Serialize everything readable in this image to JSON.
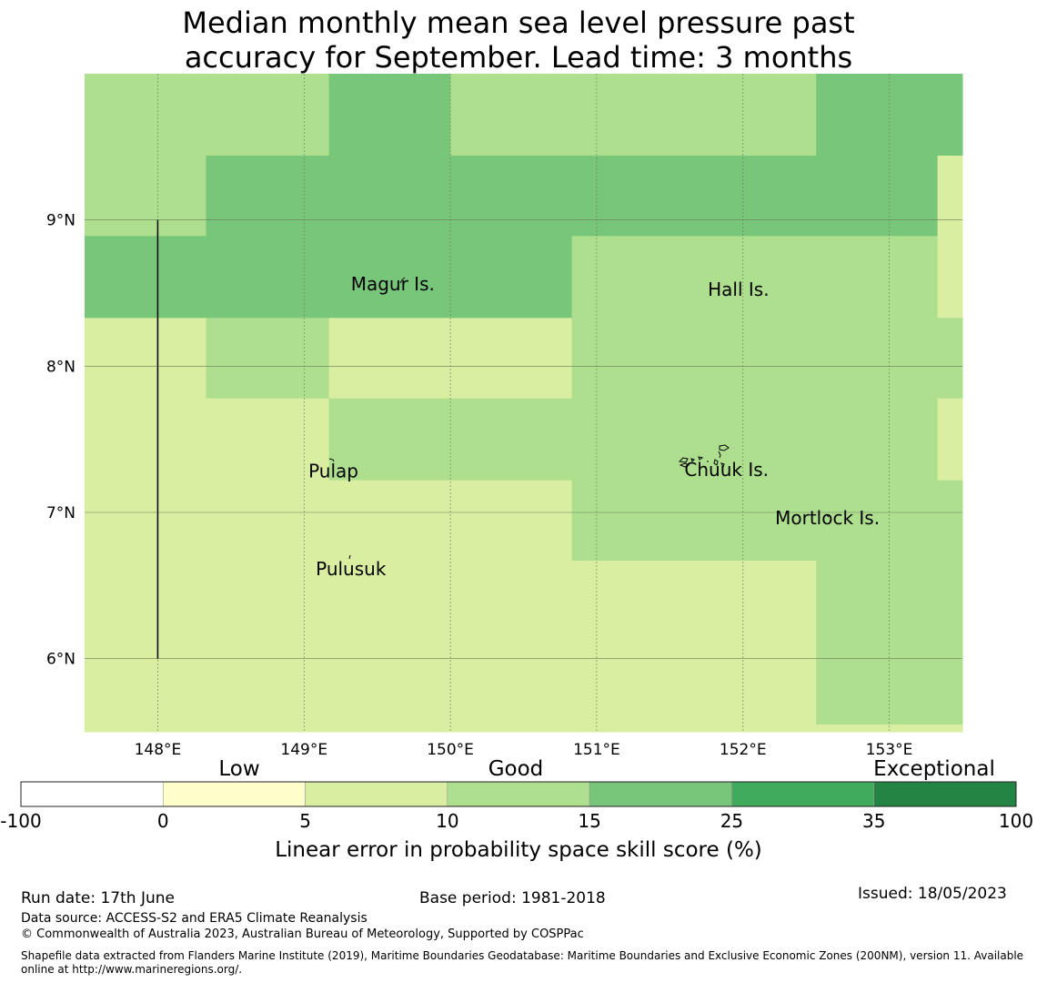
{
  "title": {
    "line1": "Median monthly mean sea level pressure past",
    "line2": "accuracy for September. Lead time: 3 months"
  },
  "map": {
    "lon_range": [
      147.5,
      153.5
    ],
    "lat_range": [
      5.5,
      10.0
    ],
    "lon_ticks": [
      148,
      149,
      150,
      151,
      152,
      153
    ],
    "lon_tick_labels": [
      "148°E",
      "149°E",
      "150°E",
      "151°E",
      "152°E",
      "153°E"
    ],
    "lat_ticks": [
      6,
      7,
      8,
      9
    ],
    "lat_tick_labels": [
      "6°N",
      "7°N",
      "8°N",
      "9°N"
    ],
    "grid": true,
    "boundary_line": {
      "lon": 148.0,
      "lat_from": 6.0,
      "lat_to": 9.0
    },
    "cells": [
      {
        "lon": [
          147.5,
          148.33
        ],
        "lat": [
          9.44,
          10.0
        ],
        "cls": "c10"
      },
      {
        "lon": [
          148.33,
          149.17
        ],
        "lat": [
          9.44,
          10.0
        ],
        "cls": "c10"
      },
      {
        "lon": [
          149.17,
          150.0
        ],
        "lat": [
          9.44,
          10.0
        ],
        "cls": "c15"
      },
      {
        "lon": [
          150.0,
          152.5
        ],
        "lat": [
          9.44,
          10.0
        ],
        "cls": "c10"
      },
      {
        "lon": [
          152.5,
          153.5
        ],
        "lat": [
          9.44,
          10.0
        ],
        "cls": "c15"
      },
      {
        "lon": [
          147.5,
          148.33
        ],
        "lat": [
          8.89,
          9.44
        ],
        "cls": "c10"
      },
      {
        "lon": [
          148.33,
          153.33
        ],
        "lat": [
          8.89,
          9.44
        ],
        "cls": "c15"
      },
      {
        "lon": [
          153.33,
          153.5
        ],
        "lat": [
          8.89,
          9.44
        ],
        "cls": "c5"
      },
      {
        "lon": [
          147.5,
          150.83
        ],
        "lat": [
          8.33,
          8.89
        ],
        "cls": "c15"
      },
      {
        "lon": [
          150.83,
          153.33
        ],
        "lat": [
          8.33,
          8.89
        ],
        "cls": "c10"
      },
      {
        "lon": [
          153.33,
          153.5
        ],
        "lat": [
          8.33,
          8.89
        ],
        "cls": "c5"
      },
      {
        "lon": [
          147.5,
          148.33
        ],
        "lat": [
          7.78,
          8.33
        ],
        "cls": "c5"
      },
      {
        "lon": [
          148.33,
          149.17
        ],
        "lat": [
          7.78,
          8.33
        ],
        "cls": "c10"
      },
      {
        "lon": [
          149.17,
          150.83
        ],
        "lat": [
          7.78,
          8.33
        ],
        "cls": "c5"
      },
      {
        "lon": [
          150.83,
          153.5
        ],
        "lat": [
          7.78,
          8.33
        ],
        "cls": "c10"
      },
      {
        "lon": [
          147.5,
          149.17
        ],
        "lat": [
          7.22,
          7.78
        ],
        "cls": "c5"
      },
      {
        "lon": [
          149.17,
          153.33
        ],
        "lat": [
          7.22,
          7.78
        ],
        "cls": "c10"
      },
      {
        "lon": [
          153.33,
          153.5
        ],
        "lat": [
          7.22,
          7.78
        ],
        "cls": "c5"
      },
      {
        "lon": [
          147.5,
          150.83
        ],
        "lat": [
          6.67,
          7.22
        ],
        "cls": "c5"
      },
      {
        "lon": [
          150.83,
          153.5
        ],
        "lat": [
          6.67,
          7.22
        ],
        "cls": "c10"
      },
      {
        "lon": [
          147.5,
          152.5
        ],
        "lat": [
          5.5,
          6.67
        ],
        "cls": "c5"
      },
      {
        "lon": [
          152.5,
          153.5
        ],
        "lat": [
          5.55,
          6.67
        ],
        "cls": "c10"
      },
      {
        "lon": [
          152.5,
          153.5
        ],
        "lat": [
          5.5,
          5.55
        ],
        "cls": "c5"
      }
    ],
    "places": [
      {
        "name": "Magur Is.",
        "lon": 149.32,
        "lat": 8.52
      },
      {
        "name": "Hall Is.",
        "lon": 151.76,
        "lat": 8.48
      },
      {
        "name": "Pulap",
        "lon": 149.03,
        "lat": 7.24
      },
      {
        "name": "Chuuk Is.",
        "lon": 151.6,
        "lat": 7.25
      },
      {
        "name": "Mortlock Is.",
        "lon": 152.22,
        "lat": 6.92
      },
      {
        "name": "Pulusuk",
        "lon": 149.08,
        "lat": 6.57
      }
    ]
  },
  "legend": {
    "category_labels": [
      "Low",
      "Good",
      "Exceptional"
    ],
    "bins": [
      {
        "from": "-100",
        "to": "0",
        "color": "#ffffff"
      },
      {
        "from": "0",
        "to": "5",
        "color": "#ffffcc"
      },
      {
        "from": "5",
        "to": "10",
        "color": "#d9eea1"
      },
      {
        "from": "10",
        "to": "15",
        "color": "#addf8e"
      },
      {
        "from": "15",
        "to": "25",
        "color": "#78c679"
      },
      {
        "from": "25",
        "to": "35",
        "color": "#41ab5d"
      },
      {
        "from": "35",
        "to": "100",
        "color": "#238443"
      }
    ],
    "tick_labels": [
      "-100",
      "0",
      "5",
      "10",
      "15",
      "25",
      "35",
      "100"
    ],
    "axis_label": "Linear error in probability space skill score (%)"
  },
  "colors": {
    "c5": "#d9eea1",
    "c10": "#addf8e",
    "c15": "#78c679"
  },
  "footer": {
    "run_date": "Run date: 17th June",
    "base_period": "Base period: 1981-2018",
    "issued": "Issued: 18/05/2023",
    "data_source": "Data source: ACCESS-S2 and ERA5 Climate Reanalysis",
    "copyright": "© Commonwealth of Australia 2023, Australian Bureau of Meteorology, Supported by COSPPac",
    "shapefile_line1": "Shapefile data extracted from Flanders Marine Institute (2019), Maritime Boundaries Geodatabase: Maritime Boundaries and Exclusive Economic Zones (200NM), version 11. Available",
    "shapefile_line2": "online at http://www.marineregions.org/."
  }
}
